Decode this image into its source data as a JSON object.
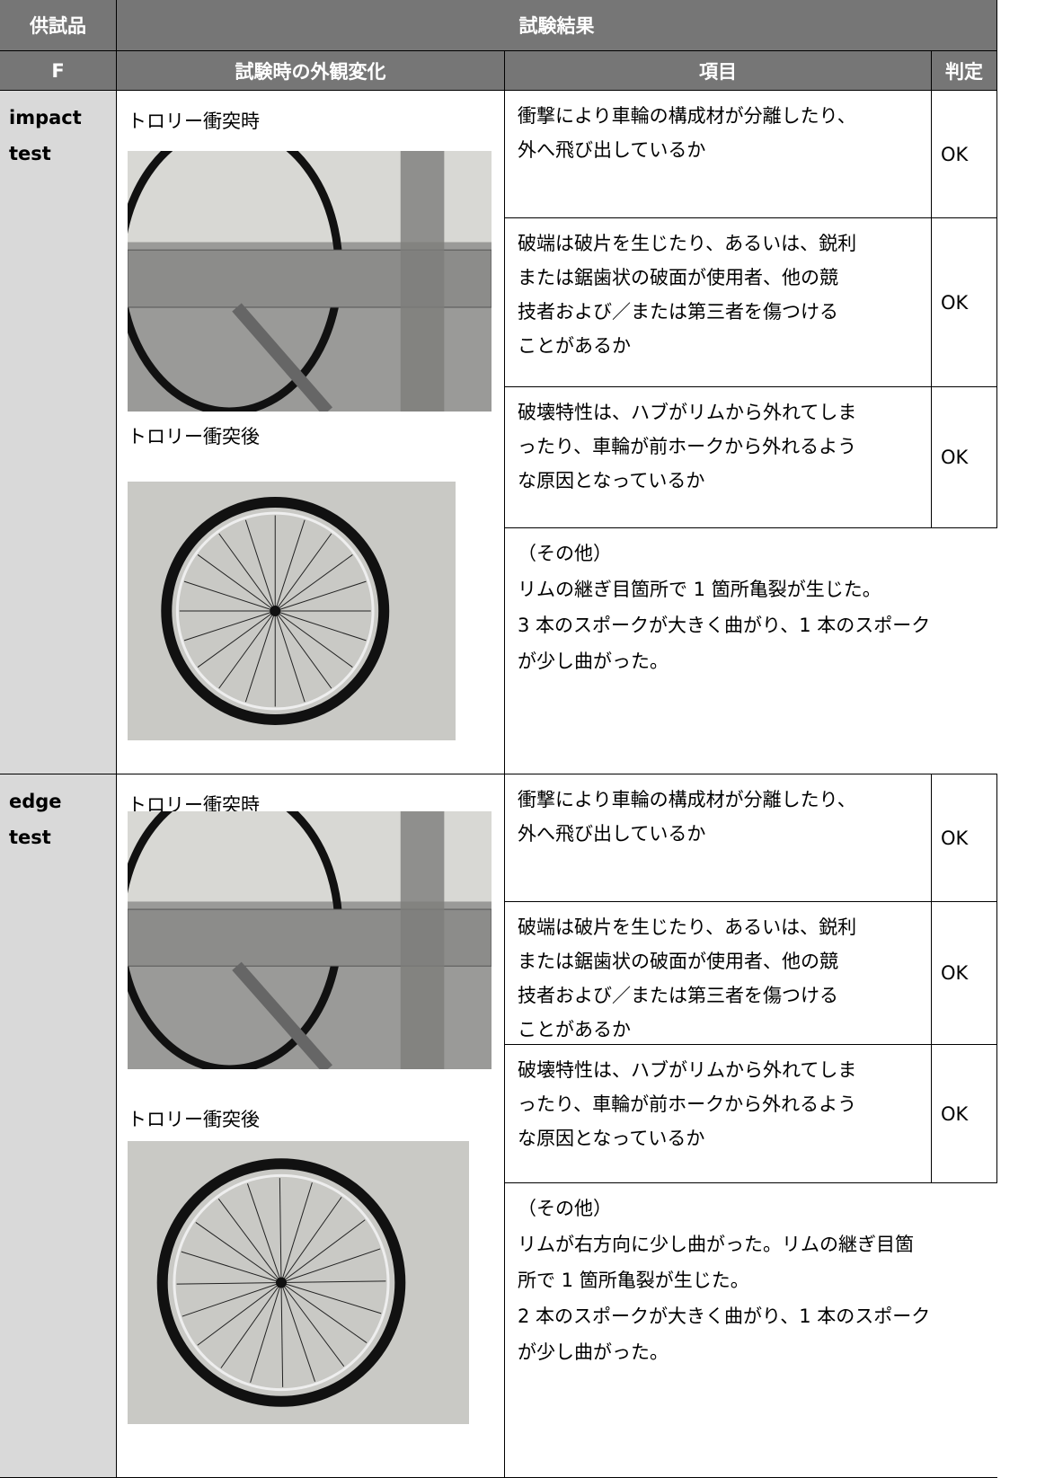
{
  "header": {
    "sample": "供試品",
    "results": "試験結果",
    "sample_id": "F",
    "appearance": "試験時の外観変化",
    "item": "項目",
    "judgement": "判定"
  },
  "sections": [
    {
      "test_name": [
        "impact",
        "test"
      ],
      "caption_during": "トロリー衝突時",
      "caption_after": "トロリー衝突後",
      "items": [
        {
          "lines": [
            "衝撃により車輪の構成材が分離したり、",
            "外へ飛び出しているか"
          ],
          "result": "OK"
        },
        {
          "lines": [
            "破端は破片を生じたり、あるいは、鋭利",
            "または鋸歯状の破面が使用者、他の競",
            "技者および／または第三者を傷つける",
            "ことがあるか"
          ],
          "result": "OK"
        },
        {
          "lines": [
            "破壊特性は、ハブがリムから外れてしま",
            "ったり、車輪が前ホークから外れるよう",
            "な原因となっているか"
          ],
          "result": "OK"
        }
      ],
      "other": [
        "（その他）",
        "リムの継ぎ目箇所で 1 箇所亀裂が生じた。",
        "3 本のスポークが大きく曲がり、1 本のスポーク",
        "が少し曲がった。"
      ]
    },
    {
      "test_name": [
        "edge",
        "test"
      ],
      "caption_during": "トロリー衝突時",
      "caption_after": "トロリー衝突後",
      "items": [
        {
          "lines": [
            "衝撃により車輪の構成材が分離したり、",
            "外へ飛び出しているか"
          ],
          "result": "OK"
        },
        {
          "lines": [
            "破端は破片を生じたり、あるいは、鋭利",
            "または鋸歯状の破面が使用者、他の競",
            "技者および／または第三者を傷つける",
            "ことがあるか"
          ],
          "result": "OK"
        },
        {
          "lines": [
            "破壊特性は、ハブがリムから外れてしま",
            "ったり、車輪が前ホークから外れるよう",
            "な原因となっているか"
          ],
          "result": "OK"
        }
      ],
      "other": [
        "（その他）",
        "リムが右方向に少し曲がった。リムの継ぎ目箇",
        "所で 1 箇所亀裂が生じた。",
        "2 本のスポークが大きく曲がり、1 本のスポーク",
        "が少し曲がった。"
      ]
    }
  ]
}
